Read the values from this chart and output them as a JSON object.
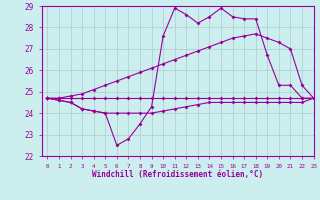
{
  "xlabel": "Windchill (Refroidissement éolien,°C)",
  "x_hours": [
    0,
    1,
    2,
    3,
    4,
    5,
    6,
    7,
    8,
    9,
    10,
    11,
    12,
    13,
    14,
    15,
    16,
    17,
    18,
    19,
    20,
    21,
    22,
    23
  ],
  "windchill_line": [
    24.7,
    24.6,
    24.5,
    24.2,
    24.1,
    24.0,
    22.5,
    22.8,
    23.5,
    24.3,
    27.6,
    28.9,
    28.6,
    28.2,
    28.5,
    28.9,
    28.5,
    28.4,
    28.4,
    26.7,
    25.3,
    25.3,
    24.7,
    24.7
  ],
  "max_line": [
    24.7,
    24.7,
    24.8,
    24.9,
    25.1,
    25.3,
    25.5,
    25.7,
    25.9,
    26.1,
    26.3,
    26.5,
    26.7,
    26.9,
    27.1,
    27.3,
    27.5,
    27.6,
    27.7,
    27.5,
    27.3,
    27.0,
    25.3,
    24.7
  ],
  "min_line": [
    24.7,
    24.6,
    24.5,
    24.2,
    24.1,
    24.0,
    24.0,
    24.0,
    24.0,
    24.0,
    24.1,
    24.2,
    24.3,
    24.4,
    24.5,
    24.5,
    24.5,
    24.5,
    24.5,
    24.5,
    24.5,
    24.5,
    24.5,
    24.7
  ],
  "temp_line": [
    24.7,
    24.7,
    24.7,
    24.7,
    24.7,
    24.7,
    24.7,
    24.7,
    24.7,
    24.7,
    24.7,
    24.7,
    24.7,
    24.7,
    24.7,
    24.7,
    24.7,
    24.7,
    24.7,
    24.7,
    24.7,
    24.7,
    24.7,
    24.7
  ],
  "ylim": [
    22,
    29
  ],
  "xlim": [
    -0.5,
    23
  ],
  "color": "#990099",
  "bg_color": "#cceeee",
  "grid_color": "#aacccc"
}
